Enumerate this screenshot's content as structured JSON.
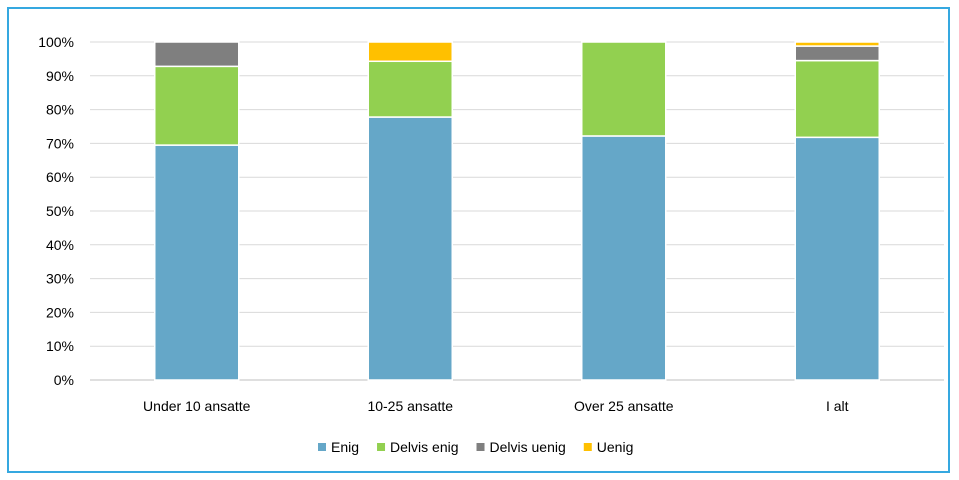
{
  "chart_data": {
    "type": "bar",
    "stacked": true,
    "categories": [
      "Under 10 ansatte",
      "10-25 ansatte",
      "Over 25 ansatte",
      "I alt"
    ],
    "series": [
      {
        "name": "Enig",
        "color": "#65a7c8",
        "values": [
          69.5,
          77.8,
          72.2,
          71.8
        ]
      },
      {
        "name": "Delvis enig",
        "color": "#92d050",
        "values": [
          23.3,
          16.5,
          27.8,
          22.7
        ]
      },
      {
        "name": "Delvis uenig",
        "color": "#7f7f7f",
        "values": [
          7.2,
          0,
          0,
          4.3
        ]
      },
      {
        "name": "Uenig",
        "color": "#ffc000",
        "values": [
          0,
          5.7,
          0,
          1.2
        ]
      }
    ],
    "yticks": [
      "0%",
      "10%",
      "20%",
      "30%",
      "40%",
      "50%",
      "60%",
      "70%",
      "80%",
      "90%",
      "100%"
    ],
    "ylim": [
      0,
      100
    ],
    "grid": true,
    "legend_position": "bottom",
    "colors": {
      "frame": "#35a8e0",
      "grid": "#d9d9d9"
    }
  }
}
